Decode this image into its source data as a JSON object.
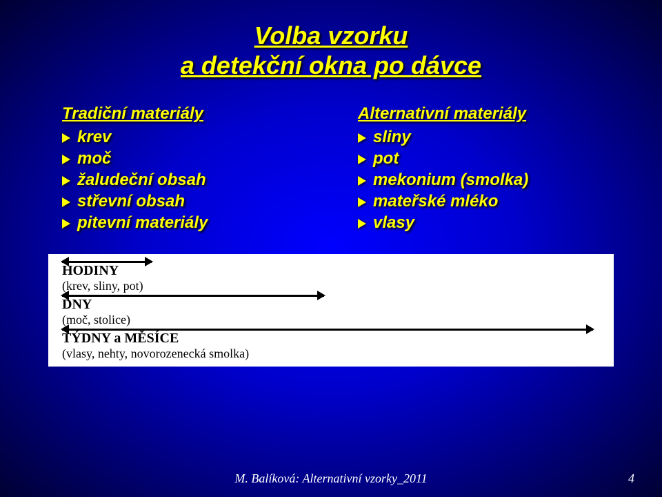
{
  "title": {
    "line1": "Volba vzorku",
    "line2": "a detekční okna po dávce"
  },
  "left": {
    "header": "Tradiční materiály",
    "items": [
      "krev",
      "moč",
      "žaludeční obsah",
      "střevní obsah",
      "pitevní materiály"
    ]
  },
  "right": {
    "header": "Alternativní materiály",
    "items": [
      "sliny",
      "pot",
      "mekonium (smolka)",
      "mateřské mléko",
      "vlasy"
    ]
  },
  "diagram": {
    "rows": [
      {
        "label": "HODINY",
        "sub": "(krev, sliny, pot)"
      },
      {
        "label": "DNY",
        "sub": "(moč, stolice)"
      },
      {
        "label": "TÝDNY  a  MĚSÍCE",
        "sub": "(vlasy, nehty, novorozenecká smolka)"
      }
    ]
  },
  "footer": {
    "text": "M. Balíková: Alternativní vzorky_2011",
    "page": "4"
  }
}
